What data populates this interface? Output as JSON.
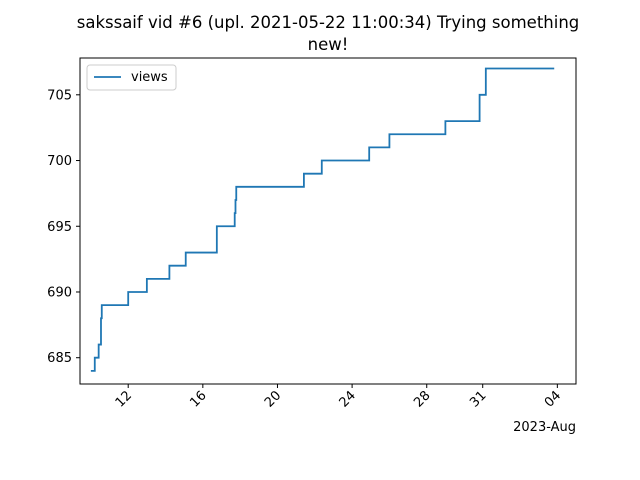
{
  "chart_data": {
    "type": "line",
    "title_line1": "sakssaif vid #6 (upl. 2021-05-22 11:00:34) Trying something",
    "title_line2": "new!",
    "x_offset_label": "2023-Aug",
    "x_ticks": [
      {
        "label": "12",
        "date": "2023-07-12"
      },
      {
        "label": "16",
        "date": "2023-07-16"
      },
      {
        "label": "20",
        "date": "2023-07-20"
      },
      {
        "label": "24",
        "date": "2023-07-24"
      },
      {
        "label": "28",
        "date": "2023-07-28"
      },
      {
        "label": "31",
        "date": "2023-07-31"
      },
      {
        "label": "04",
        "date": "2023-08-04"
      }
    ],
    "y_ticks": [
      685,
      690,
      695,
      700,
      705
    ],
    "xlim": [
      "2023-07-09 10:00",
      "2023-08-05 00:00"
    ],
    "ylim": [
      683,
      707.8
    ],
    "legend": {
      "position": "top-left",
      "entries": [
        "views"
      ]
    },
    "grid": false,
    "colors": {
      "series": "#1f77b4"
    },
    "series": [
      {
        "name": "views",
        "step": "post",
        "x": [
          "2023-07-10 00:00",
          "2023-07-10 05:00",
          "2023-07-10 10:00",
          "2023-07-10 13:00",
          "2023-07-10 14:00",
          "2023-07-10 16:00",
          "2023-07-12 00:00",
          "2023-07-13 00:00",
          "2023-07-14 05:00",
          "2023-07-15 02:00",
          "2023-07-16 02:00",
          "2023-07-16 18:00",
          "2023-07-17 17:00",
          "2023-07-17 18:00",
          "2023-07-17 19:00",
          "2023-07-21 10:00",
          "2023-07-22 09:00",
          "2023-07-24 22:00",
          "2023-07-26 00:00",
          "2023-07-29 00:00",
          "2023-07-30 20:00",
          "2023-07-31 04:00",
          "2023-08-03 20:00"
        ],
        "values": [
          684,
          685,
          686,
          688,
          689,
          689,
          690,
          691,
          692,
          693,
          693,
          695,
          696,
          697,
          698,
          699,
          700,
          701,
          702,
          703,
          705,
          707,
          707
        ]
      }
    ]
  }
}
